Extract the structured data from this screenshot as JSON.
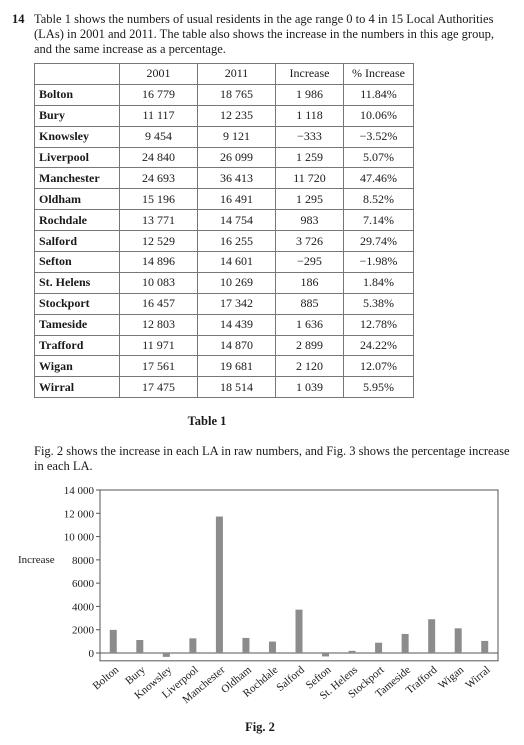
{
  "question": {
    "number": "14",
    "intro": "Table 1 shows the numbers of usual residents in the age range 0 to 4 in 15 Local Authorities (LAs) in 2001 and 2011. The table also shows the increase in the numbers in this age group, and the same increase as a percentage."
  },
  "table": {
    "headers": [
      "",
      "2001",
      "2011",
      "Increase",
      "% Increase"
    ],
    "rows": [
      [
        "Bolton",
        "16 779",
        "18 765",
        "1 986",
        "11.84%"
      ],
      [
        "Bury",
        "11 117",
        "12 235",
        "1 118",
        "10.06%"
      ],
      [
        "Knowsley",
        "9 454",
        "9 121",
        "−333",
        "−3.52%"
      ],
      [
        "Liverpool",
        "24 840",
        "26 099",
        "1 259",
        "5.07%"
      ],
      [
        "Manchester",
        "24 693",
        "36 413",
        "11 720",
        "47.46%"
      ],
      [
        "Oldham",
        "15 196",
        "16 491",
        "1 295",
        "8.52%"
      ],
      [
        "Rochdale",
        "13 771",
        "14 754",
        "983",
        "7.14%"
      ],
      [
        "Salford",
        "12 529",
        "16 255",
        "3 726",
        "29.74%"
      ],
      [
        "Sefton",
        "14 896",
        "14 601",
        "−295",
        "−1.98%"
      ],
      [
        "St. Helens",
        "10 083",
        "10 269",
        "186",
        "1.84%"
      ],
      [
        "Stockport",
        "16 457",
        "17 342",
        "885",
        "5.38%"
      ],
      [
        "Tameside",
        "12 803",
        "14 439",
        "1 636",
        "12.78%"
      ],
      [
        "Trafford",
        "11 971",
        "14 870",
        "2 899",
        "24.22%"
      ],
      [
        "Wigan",
        "17 561",
        "19 681",
        "2 120",
        "12.07%"
      ],
      [
        "Wirral",
        "17 475",
        "18 514",
        "1 039",
        "5.95%"
      ]
    ],
    "caption": "Table 1"
  },
  "paragraph2": "Fig. 2 shows the increase in each LA in raw numbers, and Fig. 3 shows the percentage increase in each LA.",
  "chart_data": {
    "type": "bar",
    "title": "",
    "xlabel": "",
    "ylabel": "Increase",
    "categories": [
      "Bolton",
      "Bury",
      "Knowsley",
      "Liverpool",
      "Manchester",
      "Oldham",
      "Rochdale",
      "Salford",
      "Sefton",
      "St. Helens",
      "Stockport",
      "Tameside",
      "Trafford",
      "Wigan",
      "Wirral"
    ],
    "values": [
      1986,
      1118,
      -333,
      1259,
      11720,
      1295,
      983,
      3726,
      -295,
      186,
      885,
      1636,
      2899,
      2120,
      1039
    ],
    "ylim": [
      -500,
      14000
    ],
    "yticks": [
      0,
      2000,
      4000,
      6000,
      8000,
      10000,
      12000,
      14000
    ],
    "ytick_labels": [
      "0",
      "2000",
      "4000",
      "6000",
      "8000",
      "10 000",
      "12 000",
      "14 000"
    ],
    "grid": false,
    "legend": "none",
    "bar_color": "#8c8c8c",
    "caption": "Fig. 2"
  }
}
